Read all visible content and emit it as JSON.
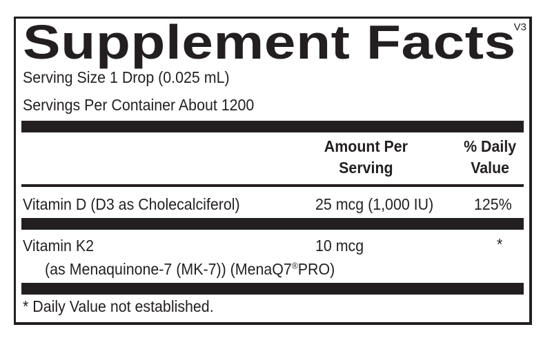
{
  "title": "Supplement Facts",
  "version": "V3",
  "serving_size": "Serving Size 1 Drop (0.025 mL)",
  "servings_per_container": "Servings Per Container About 1200",
  "header": {
    "amount_line1": "Amount Per",
    "amount_line2": "Serving",
    "dv_line1": "% Daily",
    "dv_line2": "Value"
  },
  "rows": [
    {
      "name": "Vitamin D (D3 as Cholecalciferol)",
      "amount": "25 mcg (1,000 IU)",
      "dv": "125%"
    },
    {
      "name": "Vitamin K2",
      "amount": "10 mcg",
      "dv": "*",
      "sub": "(as Menaquinone-7 (MK-7)) (MenaQ7",
      "sub_reg": "®",
      "sub_end": "PRO)"
    }
  ],
  "footnote": "* Daily Value not established."
}
